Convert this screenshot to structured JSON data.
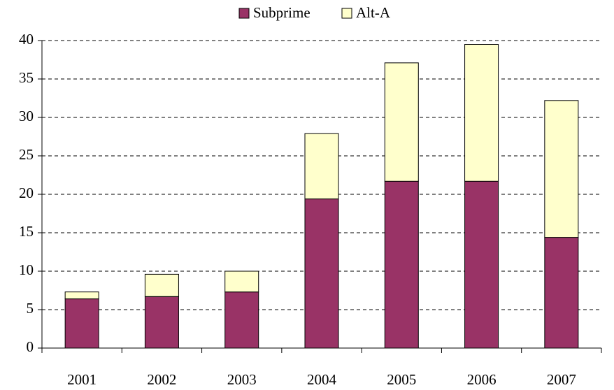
{
  "chart_data": {
    "type": "stacked_bar",
    "categories": [
      "2001",
      "2002",
      "2003",
      "2004",
      "2005",
      "2006",
      "2007"
    ],
    "series": [
      {
        "name": "Subprime",
        "color": "#993366",
        "values": [
          6.4,
          6.7,
          7.3,
          19.4,
          21.7,
          21.7,
          14.4
        ]
      },
      {
        "name": "Alt-A",
        "color": "#ffffcc",
        "values": [
          0.9,
          2.9,
          2.7,
          8.5,
          15.4,
          17.8,
          17.8
        ]
      }
    ],
    "ylim": [
      0,
      40
    ],
    "yticks": [
      0,
      5,
      10,
      15,
      20,
      25,
      30,
      35,
      40
    ],
    "grid": true,
    "legend": "top"
  }
}
